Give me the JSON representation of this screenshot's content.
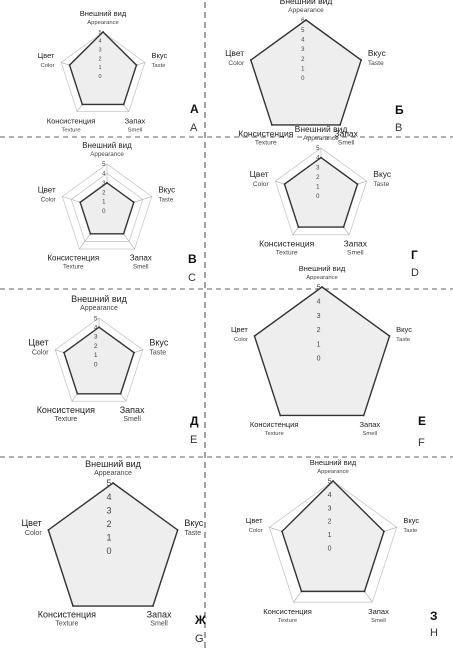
{
  "chart_data": [
    {
      "type": "radar",
      "panel_letter_ru": "А",
      "panel_letter_en": "A",
      "axes": [
        {
          "ru": "Внешний вид",
          "en": "Appearance"
        },
        {
          "ru": "Вкус",
          "en": "Taste"
        },
        {
          "ru": "Запах",
          "en": "Smell"
        },
        {
          "ru": "Консистенция",
          "en": "Texture"
        },
        {
          "ru": "Цвет",
          "en": "Color"
        }
      ],
      "ticks": [
        "0",
        "1",
        "2",
        "3",
        "4",
        "5"
      ],
      "rmax": 5,
      "values": [
        5,
        4,
        4,
        4,
        4
      ]
    },
    {
      "type": "radar",
      "panel_letter_ru": "Б",
      "panel_letter_en": "B",
      "axes": [
        {
          "ru": "Внешний вид",
          "en": "Appearance"
        },
        {
          "ru": "Вкус",
          "en": "Taste"
        },
        {
          "ru": "Запах",
          "en": "Smell"
        },
        {
          "ru": "Консистенция",
          "en": "Texture"
        },
        {
          "ru": "Цвет",
          "en": "Color"
        }
      ],
      "ticks": [
        "0",
        "1",
        "2",
        "3",
        "4",
        "5",
        "6"
      ],
      "rmax": 6,
      "values": [
        6,
        6,
        6,
        6,
        6
      ]
    },
    {
      "type": "radar",
      "panel_letter_ru": "В",
      "panel_letter_en": "C",
      "axes": [
        {
          "ru": "Внешний вид",
          "en": "Appearance"
        },
        {
          "ru": "Вкус",
          "en": "Taste"
        },
        {
          "ru": "Запах",
          "en": "Smell"
        },
        {
          "ru": "Консистенция",
          "en": "Texture"
        },
        {
          "ru": "Цвет",
          "en": "Color"
        }
      ],
      "ticks": [
        "0",
        "1",
        "2",
        "3",
        "4",
        "5"
      ],
      "rmax": 5,
      "values": [
        3,
        3,
        3,
        3,
        3
      ]
    },
    {
      "type": "radar",
      "panel_letter_ru": "Г",
      "panel_letter_en": "D",
      "axes": [
        {
          "ru": "Внешний вид",
          "en": "Appearance"
        },
        {
          "ru": "Вкус",
          "en": "Taste"
        },
        {
          "ru": "Запах",
          "en": "Smell"
        },
        {
          "ru": "Консистенция",
          "en": "Texture"
        },
        {
          "ru": "Цвет",
          "en": "Color"
        }
      ],
      "ticks": [
        "0",
        "1",
        "2",
        "3",
        "4",
        "5"
      ],
      "rmax": 5,
      "values": [
        4,
        4,
        4,
        4,
        4
      ]
    },
    {
      "type": "radar",
      "panel_letter_ru": "Д",
      "panel_letter_en": "E",
      "axes": [
        {
          "ru": "Внешний вид",
          "en": "Appearance"
        },
        {
          "ru": "Вкус",
          "en": "Taste"
        },
        {
          "ru": "Запах",
          "en": "Smell"
        },
        {
          "ru": "Консистенция",
          "en": "Texture"
        },
        {
          "ru": "Цвет",
          "en": "Color"
        }
      ],
      "ticks": [
        "0",
        "1",
        "2",
        "3",
        "4",
        "5"
      ],
      "rmax": 5,
      "values": [
        4,
        4,
        4,
        4,
        4
      ]
    },
    {
      "type": "radar",
      "panel_letter_ru": "Е",
      "panel_letter_en": "F",
      "axes": [
        {
          "ru": "Внешний вид",
          "en": "Appearance"
        },
        {
          "ru": "Вкус",
          "en": "Taste"
        },
        {
          "ru": "Запах",
          "en": "Smell"
        },
        {
          "ru": "Консистенция",
          "en": "Texture"
        },
        {
          "ru": "Цвет",
          "en": "Color"
        }
      ],
      "ticks": [
        "0",
        "1",
        "2",
        "3",
        "4",
        "5"
      ],
      "rmax": 5,
      "values": [
        5,
        5,
        5,
        5,
        5
      ]
    },
    {
      "type": "radar",
      "panel_letter_ru": "Ж",
      "panel_letter_en": "G",
      "axes": [
        {
          "ru": "Внешний вид",
          "en": "Appearance"
        },
        {
          "ru": "Вкус",
          "en": "Taste"
        },
        {
          "ru": "Запах",
          "en": "Smell"
        },
        {
          "ru": "Консистенция",
          "en": "Texture"
        },
        {
          "ru": "Цвет",
          "en": "Color"
        }
      ],
      "ticks": [
        "0",
        "1",
        "2",
        "3",
        "4",
        "5"
      ],
      "rmax": 5,
      "values": [
        5,
        5,
        5,
        5,
        5
      ]
    },
    {
      "type": "radar",
      "panel_letter_ru": "З",
      "panel_letter_en": "H",
      "axes": [
        {
          "ru": "Внешний вид",
          "en": "Appearance"
        },
        {
          "ru": "Вкус",
          "en": "Taste"
        },
        {
          "ru": "Запах",
          "en": "Smell"
        },
        {
          "ru": "Консистенция",
          "en": "Texture"
        },
        {
          "ru": "Цвет",
          "en": "Color"
        }
      ],
      "ticks": [
        "0",
        "1",
        "2",
        "3",
        "4",
        "5"
      ],
      "rmax": 5,
      "values": [
        5,
        4,
        4,
        4,
        4
      ]
    }
  ]
}
